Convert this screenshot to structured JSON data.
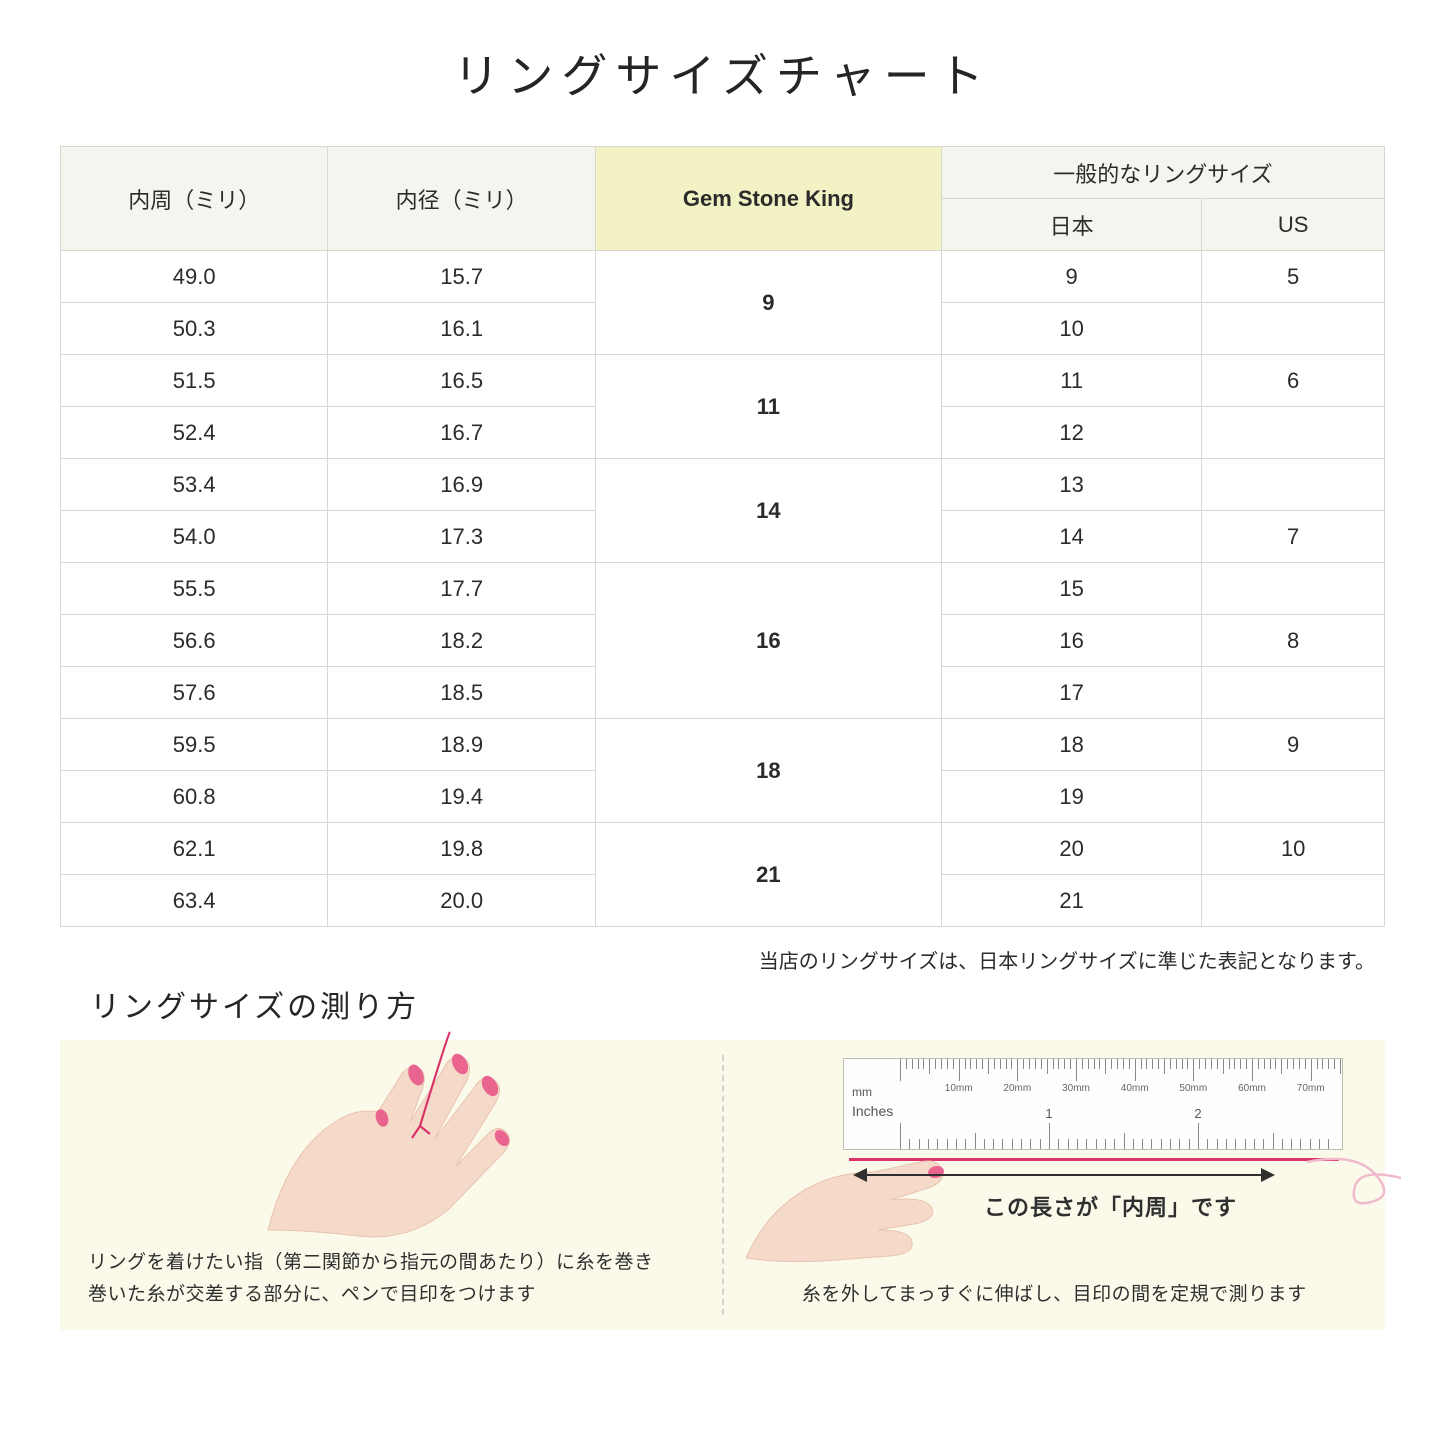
{
  "title": "リングサイズチャート",
  "table": {
    "headers": {
      "col1": "内周（ミリ）",
      "col2": "内径（ミリ）",
      "col3": "Gem Stone King",
      "general": "一般的なリングサイズ",
      "jp": "日本",
      "us": "US"
    },
    "groups": [
      {
        "gsk": "9",
        "rows": [
          {
            "c": "49.0",
            "d": "15.7",
            "jp": "9",
            "us": "5"
          },
          {
            "c": "50.3",
            "d": "16.1",
            "jp": "10",
            "us": ""
          }
        ]
      },
      {
        "gsk": "11",
        "rows": [
          {
            "c": "51.5",
            "d": "16.5",
            "jp": "11",
            "us": "6"
          },
          {
            "c": "52.4",
            "d": "16.7",
            "jp": "12",
            "us": ""
          }
        ]
      },
      {
        "gsk": "14",
        "rows": [
          {
            "c": "53.4",
            "d": "16.9",
            "jp": "13",
            "us": ""
          },
          {
            "c": "54.0",
            "d": "17.3",
            "jp": "14",
            "us": "7"
          }
        ]
      },
      {
        "gsk": "16",
        "rows": [
          {
            "c": "55.5",
            "d": "17.7",
            "jp": "15",
            "us": ""
          },
          {
            "c": "56.6",
            "d": "18.2",
            "jp": "16",
            "us": "8"
          },
          {
            "c": "57.6",
            "d": "18.5",
            "jp": "17",
            "us": ""
          }
        ]
      },
      {
        "gsk": "18",
        "rows": [
          {
            "c": "59.5",
            "d": "18.9",
            "jp": "18",
            "us": "9"
          },
          {
            "c": "60.8",
            "d": "19.4",
            "jp": "19",
            "us": ""
          }
        ]
      },
      {
        "gsk": "21",
        "rows": [
          {
            "c": "62.1",
            "d": "19.8",
            "jp": "20",
            "us": "10"
          },
          {
            "c": "63.4",
            "d": "20.0",
            "jp": "21",
            "us": ""
          }
        ]
      }
    ],
    "border_color": "#d8d8d0",
    "header_bg": "#f5f5ef",
    "gsk_bg": "#f3f2c5"
  },
  "note": "当店のリングサイズは、日本リングサイズに準じた表記となります。",
  "howto": {
    "title": "リングサイズの測り方",
    "panel_bg": "#fbfaea",
    "left_text_1": "リングを着けたい指（第二関節から指元の間あたり）に糸を巻き",
    "left_text_2": "巻いた糸が交差する部分に、ペンで目印をつけます",
    "right_arrow_label": "この長さが「内周」です",
    "right_text": "糸を外してまっすぐに伸ばし、目印の間を定規で測ります",
    "ruler": {
      "mm_label": "mm",
      "in_label": "Inches",
      "mm_marks": [
        "10mm",
        "20mm",
        "30mm",
        "40mm",
        "50mm",
        "60mm",
        "70mm"
      ],
      "in_marks": [
        "1",
        "2"
      ]
    },
    "skin_color": "#f6dac9",
    "nail_color": "#e9648e",
    "thread_color": "#d9336a"
  }
}
